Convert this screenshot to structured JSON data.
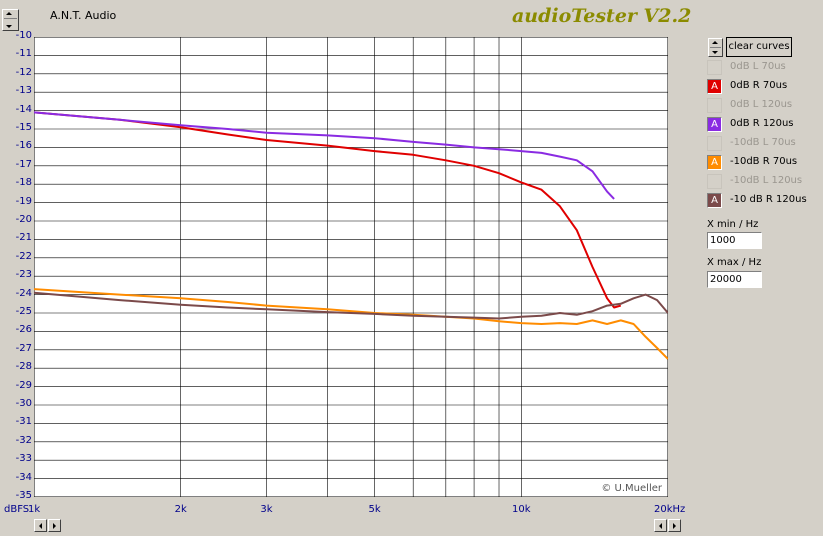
{
  "header": {
    "brand": "A.N.T. Audio",
    "app_title": "audioTester V2.2"
  },
  "watermark": "© U.Mueller",
  "buttons": {
    "clear_curves": "clear curves"
  },
  "legend": [
    {
      "label": "0dB L 70us",
      "enabled": false,
      "color": "#d4d0c8"
    },
    {
      "label": "0dB R 70us",
      "enabled": true,
      "color": "#e00000"
    },
    {
      "label": "0dB L 120us",
      "enabled": false,
      "color": "#d4d0c8"
    },
    {
      "label": "0dB R 120us",
      "enabled": true,
      "color": "#8a2be2"
    },
    {
      "label": "-10dB L 70us",
      "enabled": false,
      "color": "#d4d0c8"
    },
    {
      "label": "-10dB R 70us",
      "enabled": true,
      "color": "#ff8c00"
    },
    {
      "label": "-10dB L 120us",
      "enabled": false,
      "color": "#d4d0c8"
    },
    {
      "label": "-10 dB R 120us",
      "enabled": true,
      "color": "#7b4a4a"
    }
  ],
  "checkbox_mark": "A",
  "fields": {
    "xmin_label": "X min / Hz",
    "xmin_value": "1000",
    "xmax_label": "X max / Hz",
    "xmax_value": "20000"
  },
  "chart_data": {
    "type": "line",
    "x_scale": "log",
    "xlim": [
      1000,
      20000
    ],
    "ylim": [
      -35,
      -10
    ],
    "ylabel": "dBFS",
    "y_ticks": [
      "-10",
      "-11",
      "-12",
      "-13",
      "-14",
      "-15",
      "-16",
      "-17",
      "-18",
      "-19",
      "-20",
      "-21",
      "-22",
      "-23",
      "-24",
      "-25",
      "-26",
      "-27",
      "-28",
      "-29",
      "-30",
      "-31",
      "-32",
      "-33",
      "-34",
      "-35"
    ],
    "x_tick_labels": {
      "start": "1k",
      "2000": "2k",
      "3000": "3k",
      "5000": "5k",
      "10000": "10k",
      "end": "20kHz"
    },
    "grid": true,
    "series": [
      {
        "name": "0dB R 70us",
        "color": "#e00000",
        "x": [
          1000,
          1500,
          2000,
          2500,
          3000,
          4000,
          5000,
          6000,
          7000,
          8000,
          9000,
          10000,
          11000,
          12000,
          13000,
          14000,
          15000,
          15500,
          16000
        ],
        "y": [
          -14.1,
          -14.5,
          -14.9,
          -15.3,
          -15.6,
          -15.9,
          -16.2,
          -16.4,
          -16.7,
          -17.0,
          -17.4,
          -17.9,
          -18.3,
          -19.2,
          -20.5,
          -22.5,
          -24.2,
          -24.7,
          -24.6
        ]
      },
      {
        "name": "0dB R 120us",
        "color": "#8a2be2",
        "x": [
          1000,
          1500,
          2000,
          2500,
          3000,
          4000,
          5000,
          6000,
          7000,
          8000,
          9000,
          10000,
          11000,
          12000,
          13000,
          14000,
          15000,
          15500
        ],
        "y": [
          -14.1,
          -14.5,
          -14.8,
          -15.0,
          -15.2,
          -15.35,
          -15.5,
          -15.7,
          -15.85,
          -16.0,
          -16.1,
          -16.2,
          -16.3,
          -16.5,
          -16.7,
          -17.3,
          -18.4,
          -18.8
        ]
      },
      {
        "name": "-10dB R 70us",
        "color": "#ff8c00",
        "x": [
          1000,
          1500,
          2000,
          2500,
          3000,
          4000,
          5000,
          6000,
          7000,
          8000,
          9000,
          10000,
          11000,
          12000,
          13000,
          14000,
          15000,
          16000,
          17000,
          18000,
          19000,
          20000
        ],
        "y": [
          -23.7,
          -24.0,
          -24.2,
          -24.4,
          -24.6,
          -24.8,
          -25.0,
          -25.1,
          -25.2,
          -25.3,
          -25.45,
          -25.55,
          -25.6,
          -25.55,
          -25.6,
          -25.4,
          -25.6,
          -25.4,
          -25.6,
          -26.3,
          -26.9,
          -27.5
        ]
      },
      {
        "name": "-10 dB R 120us",
        "color": "#7b4a4a",
        "x": [
          1000,
          1500,
          2000,
          2500,
          3000,
          4000,
          5000,
          6000,
          7000,
          8000,
          9000,
          10000,
          11000,
          12000,
          13000,
          14000,
          15000,
          16000,
          17000,
          18000,
          19000,
          20000
        ],
        "y": [
          -23.9,
          -24.3,
          -24.55,
          -24.7,
          -24.8,
          -24.95,
          -25.05,
          -25.15,
          -25.2,
          -25.25,
          -25.3,
          -25.2,
          -25.15,
          -25.0,
          -25.1,
          -24.9,
          -24.6,
          -24.5,
          -24.2,
          -24.0,
          -24.3,
          -25.0
        ]
      }
    ]
  }
}
